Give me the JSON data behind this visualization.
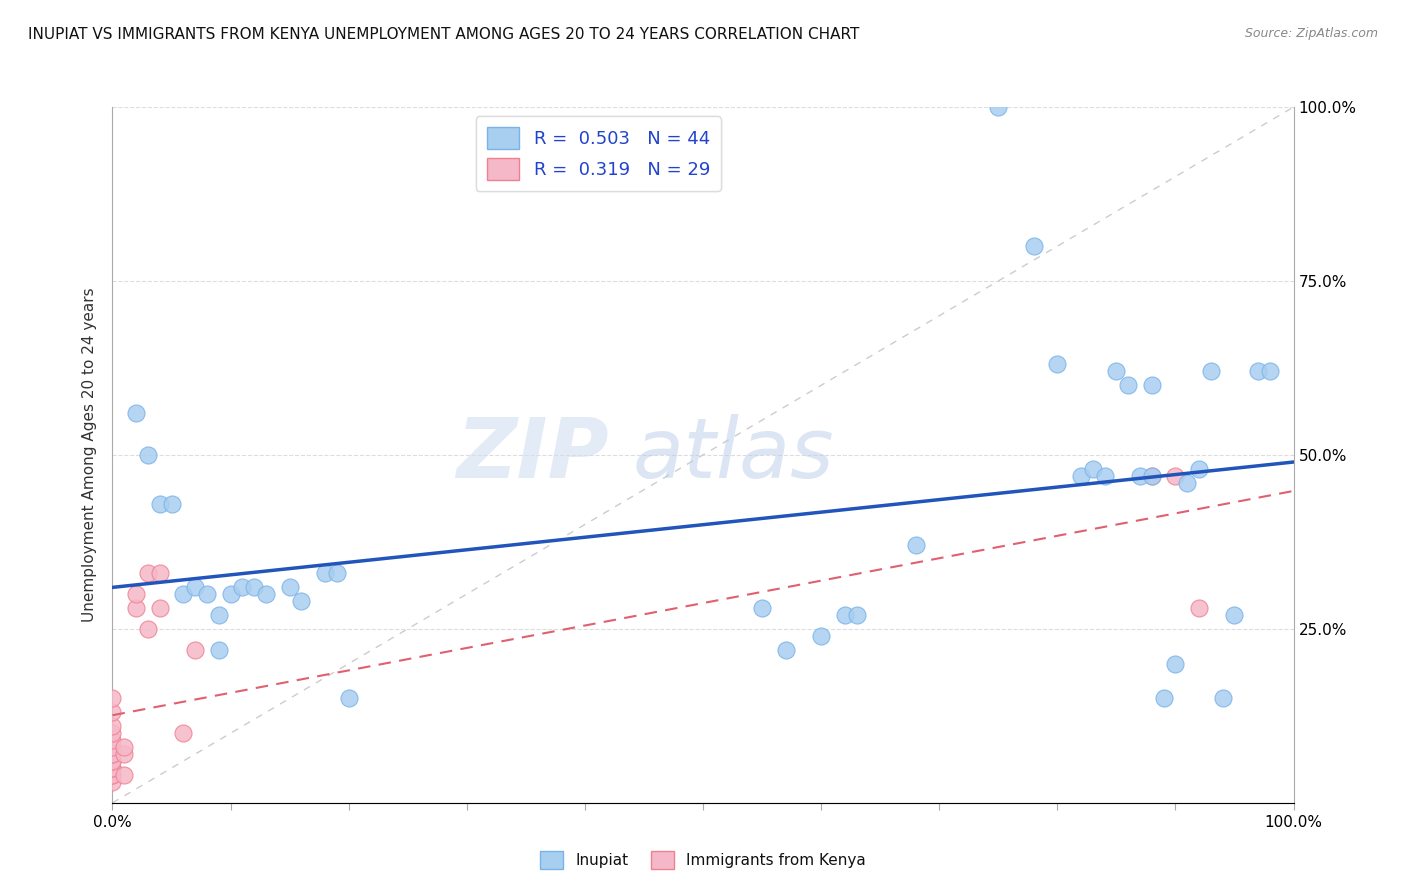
{
  "title": "INUPIAT VS IMMIGRANTS FROM KENYA UNEMPLOYMENT AMONG AGES 20 TO 24 YEARS CORRELATION CHART",
  "source": "Source: ZipAtlas.com",
  "ylabel": "Unemployment Among Ages 20 to 24 years",
  "xlim": [
    0.0,
    1.0
  ],
  "ylim": [
    0.0,
    1.0
  ],
  "xtick_vals": [
    0.0,
    0.1,
    0.2,
    0.3,
    0.4,
    0.5,
    0.6,
    0.7,
    0.8,
    0.9,
    1.0
  ],
  "xtick_labels_show": {
    "0.0": "0.0%",
    "1.0": "100.0%"
  },
  "ytick_vals": [
    0.25,
    0.5,
    0.75,
    1.0
  ],
  "ytick_labels_right": [
    "25.0%",
    "50.0%",
    "75.0%",
    "100.0%"
  ],
  "legend_label_inupiat": "Inupiat",
  "legend_label_kenya": "Immigrants from Kenya",
  "inupiat_color": "#a8cef0",
  "inupiat_edge_color": "#7ab3e8",
  "kenya_color": "#f5b8c8",
  "kenya_edge_color": "#f08090",
  "diagonal_color": "#cccccc",
  "inupiat_line_color": "#2255bb",
  "kenya_line_color": "#e06070",
  "watermark_zip": "ZIP",
  "watermark_atlas": "atlas",
  "bg_color": "#ffffff",
  "inupiat_R": "0.503",
  "inupiat_N": "44",
  "kenya_R": "0.319",
  "kenya_N": "29",
  "inupiat_points": [
    [
      0.02,
      0.56
    ],
    [
      0.03,
      0.5
    ],
    [
      0.04,
      0.43
    ],
    [
      0.05,
      0.43
    ],
    [
      0.06,
      0.3
    ],
    [
      0.07,
      0.31
    ],
    [
      0.08,
      0.3
    ],
    [
      0.09,
      0.22
    ],
    [
      0.09,
      0.27
    ],
    [
      0.1,
      0.3
    ],
    [
      0.11,
      0.31
    ],
    [
      0.12,
      0.31
    ],
    [
      0.13,
      0.3
    ],
    [
      0.15,
      0.31
    ],
    [
      0.16,
      0.29
    ],
    [
      0.18,
      0.33
    ],
    [
      0.19,
      0.33
    ],
    [
      0.2,
      0.15
    ],
    [
      0.55,
      0.28
    ],
    [
      0.57,
      0.22
    ],
    [
      0.6,
      0.24
    ],
    [
      0.62,
      0.27
    ],
    [
      0.63,
      0.27
    ],
    [
      0.68,
      0.37
    ],
    [
      0.75,
      1.0
    ],
    [
      0.78,
      0.8
    ],
    [
      0.8,
      0.63
    ],
    [
      0.82,
      0.47
    ],
    [
      0.83,
      0.48
    ],
    [
      0.84,
      0.47
    ],
    [
      0.85,
      0.62
    ],
    [
      0.86,
      0.6
    ],
    [
      0.87,
      0.47
    ],
    [
      0.88,
      0.6
    ],
    [
      0.88,
      0.47
    ],
    [
      0.89,
      0.15
    ],
    [
      0.9,
      0.2
    ],
    [
      0.91,
      0.46
    ],
    [
      0.92,
      0.48
    ],
    [
      0.93,
      0.62
    ],
    [
      0.94,
      0.15
    ],
    [
      0.95,
      0.27
    ],
    [
      0.97,
      0.62
    ],
    [
      0.98,
      0.62
    ]
  ],
  "kenya_points": [
    [
      0.0,
      0.03
    ],
    [
      0.0,
      0.04
    ],
    [
      0.0,
      0.04
    ],
    [
      0.0,
      0.05
    ],
    [
      0.0,
      0.05
    ],
    [
      0.0,
      0.06
    ],
    [
      0.0,
      0.06
    ],
    [
      0.0,
      0.07
    ],
    [
      0.0,
      0.07
    ],
    [
      0.0,
      0.08
    ],
    [
      0.0,
      0.09
    ],
    [
      0.0,
      0.1
    ],
    [
      0.0,
      0.11
    ],
    [
      0.0,
      0.13
    ],
    [
      0.0,
      0.15
    ],
    [
      0.01,
      0.04
    ],
    [
      0.01,
      0.07
    ],
    [
      0.01,
      0.08
    ],
    [
      0.02,
      0.28
    ],
    [
      0.02,
      0.3
    ],
    [
      0.03,
      0.25
    ],
    [
      0.03,
      0.33
    ],
    [
      0.04,
      0.28
    ],
    [
      0.04,
      0.33
    ],
    [
      0.06,
      0.1
    ],
    [
      0.07,
      0.22
    ],
    [
      0.88,
      0.47
    ],
    [
      0.9,
      0.47
    ],
    [
      0.92,
      0.28
    ]
  ]
}
